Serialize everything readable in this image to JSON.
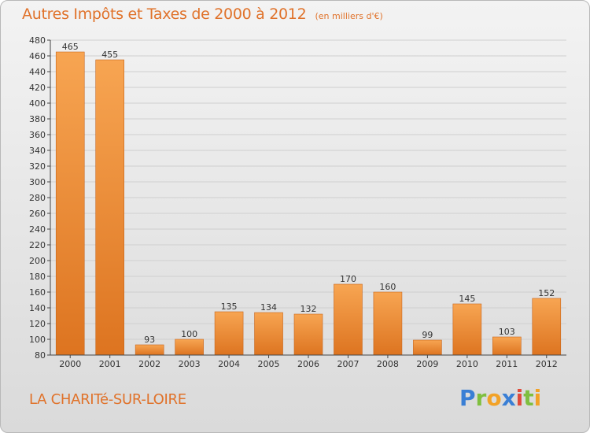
{
  "title": "Autres Impôts et Taxes de 2000 à 2012",
  "subtitle": "(en milliers d'€)",
  "commune": "LA CHARITé-SUR-LOIRE",
  "logo": {
    "letters": [
      "P",
      "r",
      "o",
      "x",
      "i",
      "t",
      "i"
    ],
    "colors": [
      "#3a7fd5",
      "#7fbf3f",
      "#f2a227",
      "#3a7fd5",
      "#e04a3a",
      "#7fbf3f",
      "#f2a227"
    ]
  },
  "colors": {
    "accent": "#e0722a",
    "bar_top": "#f7a552",
    "bar_bottom": "#dd7420",
    "axis": "#444444"
  },
  "chart_data": {
    "type": "bar",
    "title": "Autres Impôts et Taxes de 2000 à 2012",
    "subtitle": "(en milliers d'€)",
    "categories": [
      "2000",
      "2001",
      "2002",
      "2003",
      "2004",
      "2005",
      "2006",
      "2007",
      "2008",
      "2009",
      "2010",
      "2011",
      "2012"
    ],
    "values": [
      465,
      455,
      93,
      100,
      135,
      134,
      132,
      170,
      160,
      99,
      145,
      103,
      152
    ],
    "ylim": [
      80,
      480
    ],
    "yticks": [
      80,
      100,
      120,
      140,
      160,
      180,
      200,
      220,
      240,
      260,
      280,
      300,
      320,
      340,
      360,
      380,
      400,
      420,
      440,
      460,
      480
    ],
    "grid": true,
    "xlabel": "",
    "ylabel": ""
  }
}
